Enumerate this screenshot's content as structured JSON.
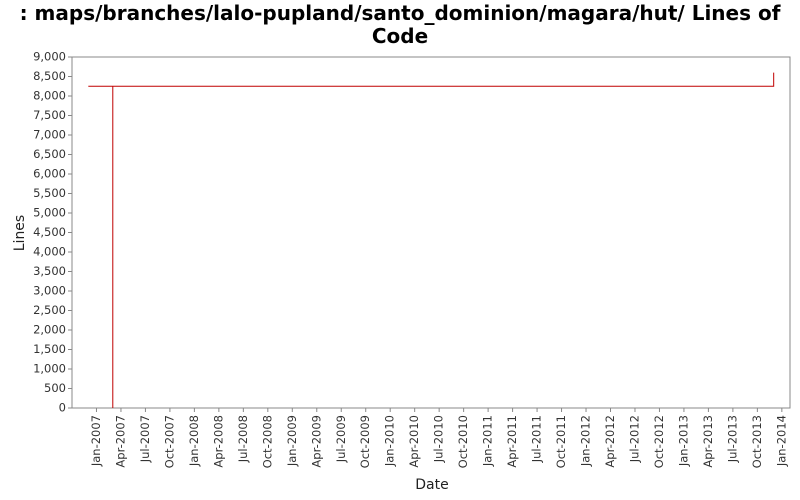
{
  "chart_data": {
    "type": "line",
    "title": ": maps/branches/lalo-pupland/santo_dominion/magara/hut/ Lines of Code",
    "x_label": "Date",
    "y_label": "Lines",
    "x": [
      "2006-12",
      "2007-03",
      "2007-03",
      "2007-03",
      "2013-12",
      "2013-12"
    ],
    "series": [
      {
        "name": "Lines",
        "color": "#c00000",
        "values": [
          8250,
          8250,
          0,
          8250,
          8250,
          8600
        ]
      }
    ],
    "xlim": [
      "2006-10",
      "2014-02"
    ],
    "xticks": [
      {
        "value": "2007-01",
        "label": "Jan-2007"
      },
      {
        "value": "2007-04",
        "label": "Apr-2007"
      },
      {
        "value": "2007-07",
        "label": "Jul-2007"
      },
      {
        "value": "2007-10",
        "label": "Oct-2007"
      },
      {
        "value": "2008-01",
        "label": "Jan-2008"
      },
      {
        "value": "2008-04",
        "label": "Apr-2008"
      },
      {
        "value": "2008-07",
        "label": "Jul-2008"
      },
      {
        "value": "2008-10",
        "label": "Oct-2008"
      },
      {
        "value": "2009-01",
        "label": "Jan-2009"
      },
      {
        "value": "2009-04",
        "label": "Apr-2009"
      },
      {
        "value": "2009-07",
        "label": "Jul-2009"
      },
      {
        "value": "2009-10",
        "label": "Oct-2009"
      },
      {
        "value": "2010-01",
        "label": "Jan-2010"
      },
      {
        "value": "2010-04",
        "label": "Apr-2010"
      },
      {
        "value": "2010-07",
        "label": "Jul-2010"
      },
      {
        "value": "2010-10",
        "label": "Oct-2010"
      },
      {
        "value": "2011-01",
        "label": "Jan-2011"
      },
      {
        "value": "2011-04",
        "label": "Apr-2011"
      },
      {
        "value": "2011-07",
        "label": "Jul-2011"
      },
      {
        "value": "2011-10",
        "label": "Oct-2011"
      },
      {
        "value": "2012-01",
        "label": "Jan-2012"
      },
      {
        "value": "2012-04",
        "label": "Apr-2012"
      },
      {
        "value": "2012-07",
        "label": "Jul-2012"
      },
      {
        "value": "2012-10",
        "label": "Oct-2012"
      },
      {
        "value": "2013-01",
        "label": "Jan-2013"
      },
      {
        "value": "2013-04",
        "label": "Apr-2013"
      },
      {
        "value": "2013-07",
        "label": "Jul-2013"
      },
      {
        "value": "2013-10",
        "label": "Oct-2013"
      },
      {
        "value": "2014-01",
        "label": "Jan-2014"
      }
    ],
    "ylim": [
      0,
      9000
    ],
    "yticks": [
      0,
      500,
      {
        "value": 1000,
        "label": "1,000"
      },
      {
        "value": 1500,
        "label": "1,500"
      },
      {
        "value": 2000,
        "label": "2,000"
      },
      {
        "value": 2500,
        "label": "2,500"
      },
      {
        "value": 3000,
        "label": "3,000"
      },
      {
        "value": 3500,
        "label": "3,500"
      },
      {
        "value": 4000,
        "label": "4,000"
      },
      {
        "value": 4500,
        "label": "4,500"
      },
      {
        "value": 5000,
        "label": "5,000"
      },
      {
        "value": 5500,
        "label": "5,500"
      },
      {
        "value": 6000,
        "label": "6,000"
      },
      {
        "value": 6500,
        "label": "6,500"
      },
      {
        "value": 7000,
        "label": "7,000"
      },
      {
        "value": 7500,
        "label": "7,500"
      },
      {
        "value": 8000,
        "label": "8,000"
      },
      {
        "value": 8500,
        "label": "8,500"
      },
      {
        "value": 9000,
        "label": "9,000"
      }
    ],
    "grid": false
  }
}
